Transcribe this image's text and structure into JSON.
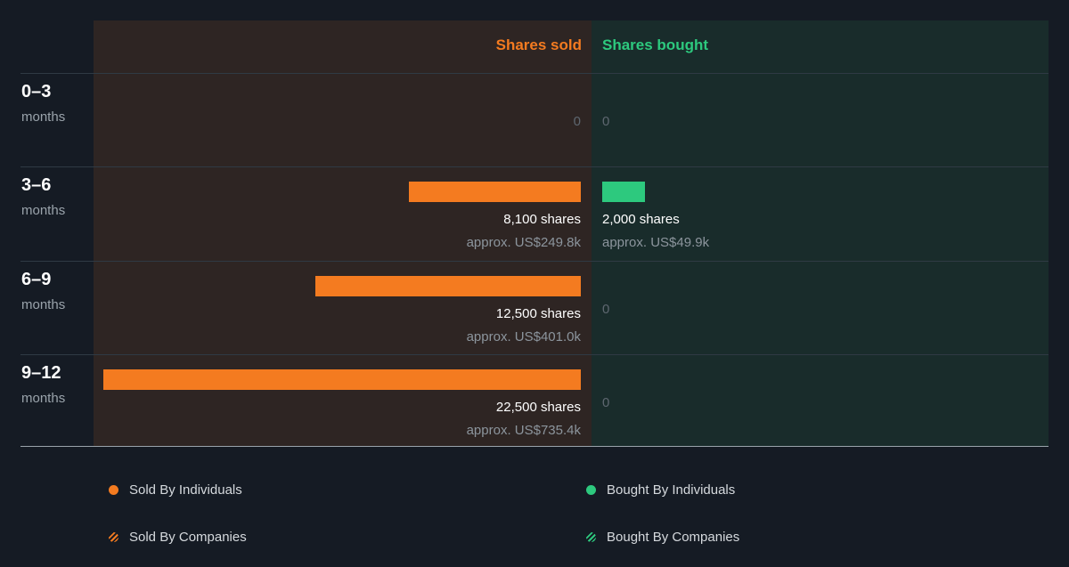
{
  "colors": {
    "sold": "#f47b20",
    "bought": "#2dc97e",
    "sold_panel": "#2e2523",
    "bought_panel": "#192c2b",
    "background": "#151b24"
  },
  "chart_data": {
    "type": "bar",
    "headers": {
      "sold": "Shares sold",
      "bought": "Shares bought"
    },
    "rows": [
      {
        "range": "0–3",
        "unit": "months",
        "sold": 0,
        "bought": 0,
        "sold_zero_label": "0",
        "bought_zero_label": "0"
      },
      {
        "range": "3–6",
        "unit": "months",
        "sold": 8100,
        "bought": 2000,
        "sold_shares_label": "8,100 shares",
        "sold_approx_label": "approx. US$249.8k",
        "bought_shares_label": "2,000 shares",
        "bought_approx_label": "approx. US$49.9k"
      },
      {
        "range": "6–9",
        "unit": "months",
        "sold": 12500,
        "bought": 0,
        "sold_shares_label": "12,500 shares",
        "sold_approx_label": "approx. US$401.0k",
        "bought_zero_label": "0"
      },
      {
        "range": "9–12",
        "unit": "months",
        "sold": 22500,
        "bought": 0,
        "sold_shares_label": "22,500 shares",
        "sold_approx_label": "approx. US$735.4k",
        "bought_zero_label": "0"
      }
    ],
    "legend": [
      {
        "label": "Sold By Individuals",
        "style": "solid",
        "color": "#f47b20"
      },
      {
        "label": "Bought By Individuals",
        "style": "solid",
        "color": "#2dc97e"
      },
      {
        "label": "Sold By Companies",
        "style": "hatched",
        "color": "#f47b20"
      },
      {
        "label": "Bought By Companies",
        "style": "hatched",
        "color": "#2dc97e"
      }
    ]
  }
}
